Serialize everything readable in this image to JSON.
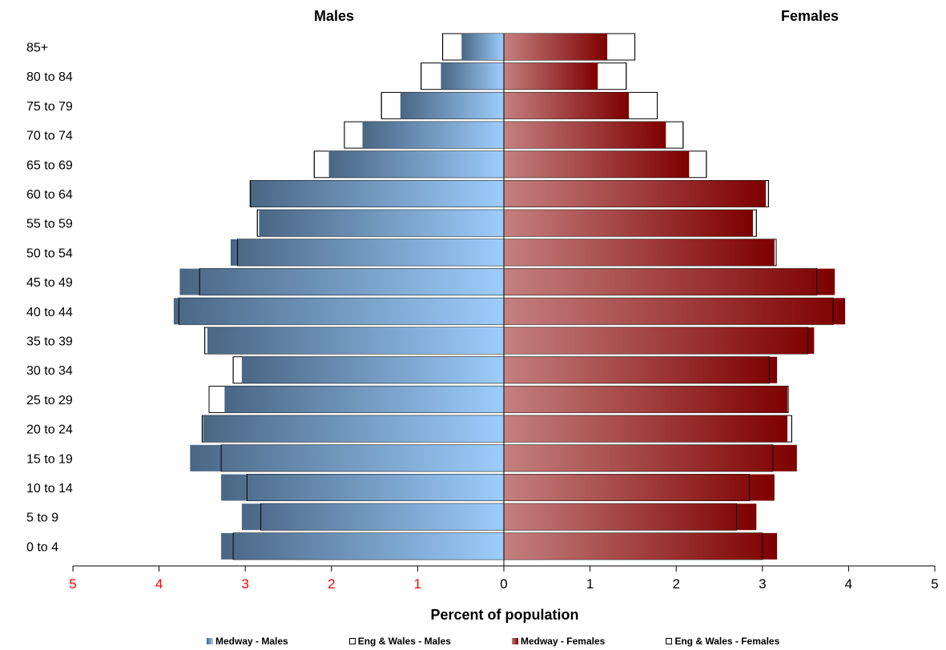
{
  "chart_data": {
    "type": "bar",
    "orientation": "horizontal",
    "subtype": "population-pyramid",
    "left_title": "Males",
    "right_title": "Females",
    "xlabel": "Percent of population",
    "xlim": [
      -5,
      5
    ],
    "x_ticks": [
      -5,
      -4,
      -3,
      -2,
      -1,
      0,
      1,
      2,
      3,
      4,
      5
    ],
    "x_tick_labels": [
      "5",
      "4",
      "3",
      "2",
      "1",
      "0",
      "1",
      "2",
      "3",
      "4",
      "5"
    ],
    "categories": [
      "85+",
      "80 to 84",
      "75 to 79",
      "70 to 74",
      "65 to 69",
      "60 to 64",
      "55 to 59",
      "50 to 54",
      "45 to 49",
      "40 to 44",
      "35 to 39",
      "30 to 34",
      "25 to 29",
      "20 to 24",
      "15 to 19",
      "10 to 14",
      "5 to 9",
      "0 to 4"
    ],
    "series": [
      {
        "name": "Medway - Males",
        "style": "gradient",
        "color_start": "#4a6684",
        "color_end": "#9ccdfc",
        "values": [
          0.49,
          0.73,
          1.2,
          1.64,
          2.03,
          2.95,
          2.84,
          3.17,
          3.76,
          3.83,
          3.44,
          3.04,
          3.24,
          3.49,
          3.64,
          3.28,
          3.04,
          3.28
        ]
      },
      {
        "name": "Eng & Wales - Males",
        "style": "outline",
        "values": [
          0.71,
          0.96,
          1.42,
          1.85,
          2.2,
          2.94,
          2.86,
          3.09,
          3.53,
          3.77,
          3.47,
          3.14,
          3.42,
          3.5,
          3.28,
          2.98,
          2.82,
          3.14
        ]
      },
      {
        "name": "Medway - Females",
        "style": "gradient",
        "color_start": "#c4807f",
        "color_end": "#7e0000",
        "values": [
          1.2,
          1.09,
          1.45,
          1.88,
          2.15,
          3.04,
          2.89,
          3.14,
          3.84,
          3.96,
          3.6,
          3.17,
          3.29,
          3.29,
          3.4,
          3.14,
          2.93,
          3.17
        ]
      },
      {
        "name": "Eng & Wales - Females",
        "style": "outline",
        "values": [
          1.52,
          1.42,
          1.78,
          2.08,
          2.35,
          3.07,
          2.93,
          3.16,
          3.63,
          3.82,
          3.53,
          3.08,
          3.3,
          3.34,
          3.12,
          2.85,
          2.7,
          3.0
        ]
      }
    ],
    "legend_position": "bottom",
    "grid": false
  }
}
